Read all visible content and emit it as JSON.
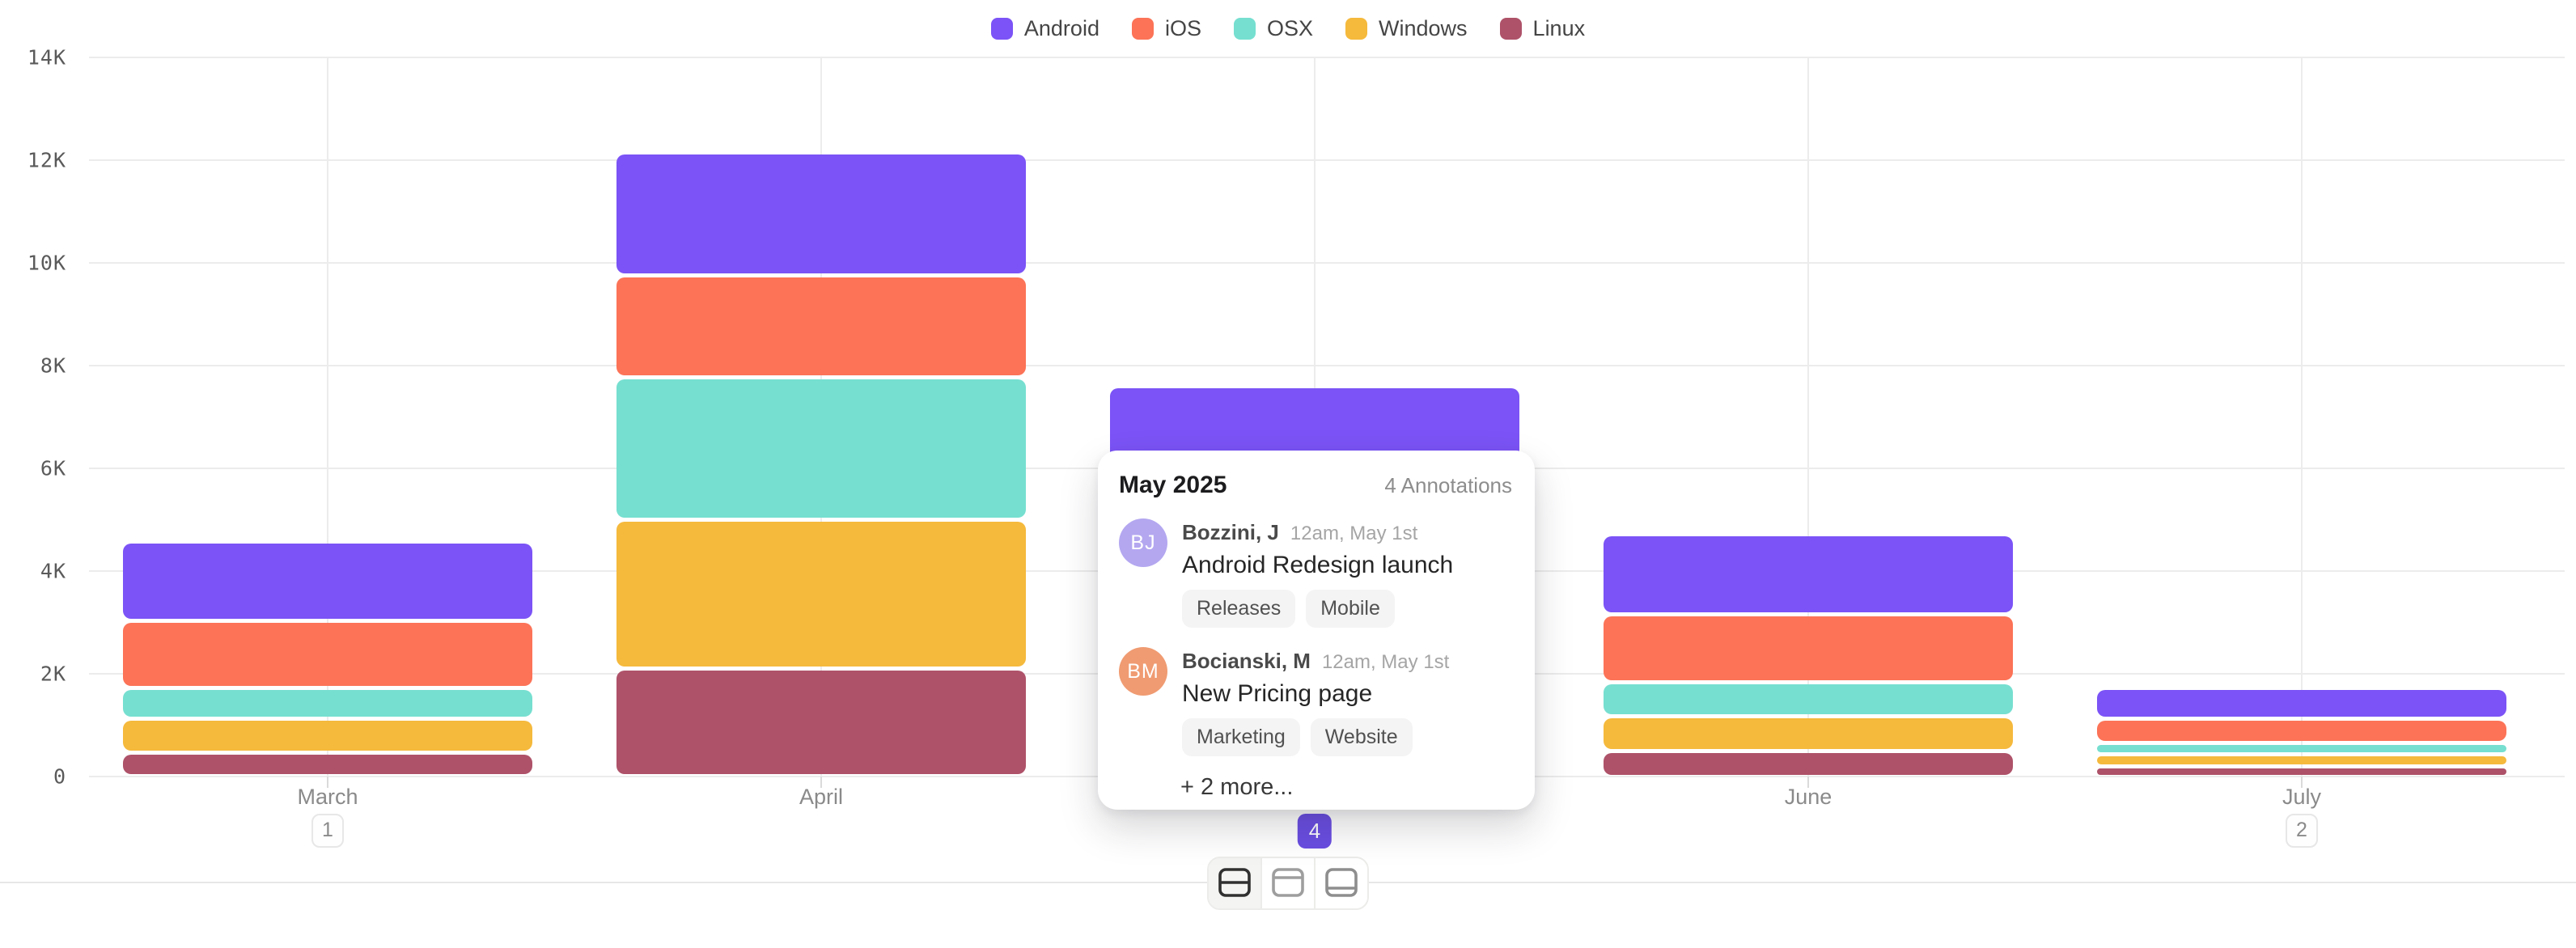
{
  "chart_data": {
    "type": "bar",
    "stacked": true,
    "categories": [
      "March",
      "April",
      "May",
      "June",
      "July"
    ],
    "series": [
      {
        "name": "Android",
        "color": "#7B53F6",
        "values": [
          1550,
          2400,
          2200,
          1550,
          600
        ]
      },
      {
        "name": "iOS",
        "color": "#FC7357",
        "values": [
          1300,
          1980,
          1700,
          1330,
          470
        ]
      },
      {
        "name": "OSX",
        "color": "#76DFD0",
        "values": [
          600,
          2770,
          1400,
          650,
          210
        ]
      },
      {
        "name": "Windows",
        "color": "#F5B93C",
        "values": [
          660,
          2900,
          1300,
          680,
          250
        ]
      },
      {
        "name": "Linux",
        "color": "#AE5269",
        "values": [
          470,
          2100,
          1000,
          500,
          190
        ]
      }
    ],
    "stack_order_bottom_to_top": [
      "Linux",
      "Windows",
      "OSX",
      "iOS",
      "Android"
    ],
    "ylim": [
      0,
      14000
    ],
    "y_ticks": [
      "0",
      "2K",
      "4K",
      "6K",
      "8K",
      "10K",
      "12K",
      "14K"
    ],
    "grid": true,
    "legend_position": "top-center",
    "x_badges": [
      {
        "month": "March",
        "count": "1",
        "selected": false
      },
      {
        "month": "May",
        "count": "4",
        "selected": true
      },
      {
        "month": "July",
        "count": "2",
        "selected": false
      }
    ]
  },
  "tooltip": {
    "title": "May 2025",
    "count_label": "4 Annotations",
    "annotations": [
      {
        "initials": "BJ",
        "avatar_color": "#B4A7F0",
        "author": "Bozzini, J",
        "time": "12am, May 1st",
        "text": "Android Redesign launch",
        "tags": [
          "Releases",
          "Mobile"
        ]
      },
      {
        "initials": "BM",
        "avatar_color": "#F09B72",
        "author": "Bocianski, M",
        "time": "12am, May 1st",
        "text": "New Pricing page",
        "tags": [
          "Marketing",
          "Website"
        ]
      }
    ],
    "more_label": "+ 2 more..."
  },
  "toolbar": {
    "buttons": [
      {
        "icon": "layout-split-rows",
        "active": true
      },
      {
        "icon": "layout-top-panel",
        "active": false
      },
      {
        "icon": "layout-bottom-panel",
        "active": false
      }
    ]
  },
  "colors": {
    "accent": "#6A4EE2",
    "grid": "#ECECEC",
    "axis_text": "#5A5A5A",
    "month_text": "#8A8A8A"
  }
}
